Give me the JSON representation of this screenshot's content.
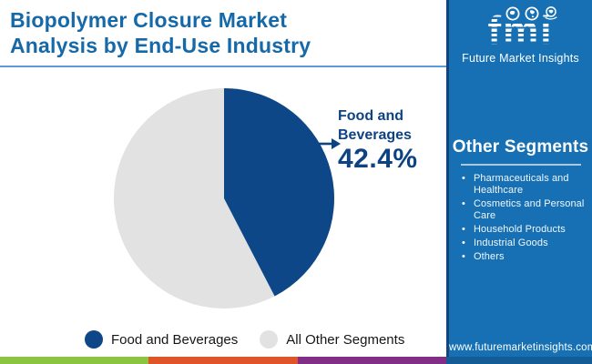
{
  "header": {
    "title_line1": "Biopolymer Closure Market",
    "title_line2": "Analysis by End-Use Industry"
  },
  "logo": {
    "acronym": "fmi",
    "tagline": "Future Market Insights"
  },
  "chart_data": {
    "type": "pie",
    "title": "Biopolymer Closure Market Analysis by End-Use Industry",
    "slices": [
      {
        "label": "Food and Beverages",
        "value": 42.4,
        "color": "#0d4787"
      },
      {
        "label": "All Other Segments",
        "value": 57.6,
        "color": "#e2e2e2"
      }
    ],
    "callout": {
      "label_line1": "Food and",
      "label_line2": "Beverages",
      "value_text": "42.4%"
    },
    "legend_position": "bottom",
    "start_angle_deg": 0,
    "direction": "clockwise"
  },
  "sidebar": {
    "heading": "Other Segments",
    "items": [
      "Pharmaceuticals and Healthcare",
      "Cosmetics and Personal Care",
      "Household Products",
      "Industrial Goods",
      "Others"
    ],
    "website": "www.futuremarketinsights.com"
  },
  "colors": {
    "title_blue": "#1569a8",
    "pie_blue": "#0d4787",
    "pie_gray": "#e2e2e2",
    "callout_blue": "#0d4383",
    "sidebar_blue": "#1670b3",
    "sidebar_edge": "#12457c",
    "underline_blue": "#5b9bd5",
    "bar_green": "#8bc53f",
    "bar_orange": "#e0542a",
    "bar_purple": "#822d86"
  }
}
